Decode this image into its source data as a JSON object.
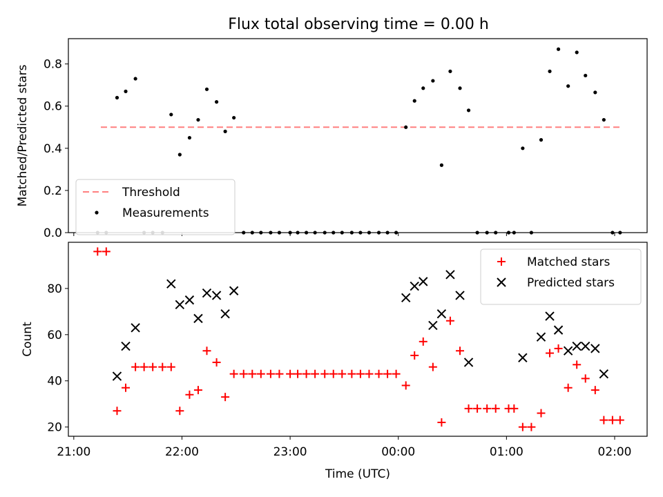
{
  "figure": {
    "title": "Flux total observing time = 0.00 h"
  },
  "chart_data": [
    {
      "type": "scatter",
      "ylabel": "Matched/Predicted stars",
      "xlabel": "",
      "x_ticks": [
        "21:00",
        "22:00",
        "23:00",
        "00:00",
        "01:00",
        "02:00"
      ],
      "x_range_hours": [
        20.95,
        26.3
      ],
      "ylim": [
        0,
        0.92
      ],
      "y_ticks": [
        "0.0",
        "0.2",
        "0.4",
        "0.6",
        "0.8"
      ],
      "legend_position": "lower-left",
      "threshold": {
        "name": "Threshold",
        "value": 0.5,
        "x_range_hours": [
          21.25,
          26.05
        ],
        "color": "#ff7f7f"
      },
      "series": [
        {
          "name": "Measurements",
          "color": "#000000",
          "points": [
            [
              21.22,
              0
            ],
            [
              21.3,
              0
            ],
            [
              21.4,
              0.64
            ],
            [
              21.48,
              0.67
            ],
            [
              21.57,
              0.73
            ],
            [
              21.65,
              0
            ],
            [
              21.73,
              0
            ],
            [
              21.82,
              0
            ],
            [
              21.9,
              0.56
            ],
            [
              21.98,
              0.37
            ],
            [
              22.07,
              0.45
            ],
            [
              22.15,
              0.535
            ],
            [
              22.23,
              0.68
            ],
            [
              22.32,
              0.62
            ],
            [
              22.4,
              0.48
            ],
            [
              22.48,
              0.545
            ],
            [
              22.57,
              0
            ],
            [
              22.65,
              0
            ],
            [
              22.73,
              0
            ],
            [
              22.82,
              0
            ],
            [
              22.9,
              0
            ],
            [
              23.0,
              0
            ],
            [
              23.07,
              0
            ],
            [
              23.15,
              0
            ],
            [
              23.23,
              0
            ],
            [
              23.32,
              0
            ],
            [
              23.4,
              0
            ],
            [
              23.48,
              0
            ],
            [
              23.57,
              0
            ],
            [
              23.65,
              0
            ],
            [
              23.73,
              0
            ],
            [
              23.82,
              0
            ],
            [
              23.9,
              0
            ],
            [
              23.98,
              0
            ],
            [
              24.07,
              0.5
            ],
            [
              24.15,
              0.625
            ],
            [
              24.23,
              0.685
            ],
            [
              24.32,
              0.72
            ],
            [
              24.4,
              0.32
            ],
            [
              24.48,
              0.765
            ],
            [
              24.57,
              0.685
            ],
            [
              24.65,
              0.58
            ],
            [
              24.73,
              0
            ],
            [
              24.82,
              0
            ],
            [
              24.9,
              0
            ],
            [
              25.02,
              0
            ],
            [
              25.07,
              0
            ],
            [
              25.15,
              0.4
            ],
            [
              25.23,
              0
            ],
            [
              25.32,
              0.44
            ],
            [
              25.4,
              0.765
            ],
            [
              25.48,
              0.87
            ],
            [
              25.57,
              0.695
            ],
            [
              25.65,
              0.855
            ],
            [
              25.73,
              0.745
            ],
            [
              25.82,
              0.665
            ],
            [
              25.9,
              0.535
            ],
            [
              25.98,
              0
            ],
            [
              26.05,
              0
            ]
          ]
        }
      ]
    },
    {
      "type": "scatter",
      "ylabel": "Count",
      "xlabel": "Time (UTC)",
      "x_ticks": [
        "21:00",
        "22:00",
        "23:00",
        "00:00",
        "01:00",
        "02:00"
      ],
      "x_range_hours": [
        20.95,
        26.3
      ],
      "ylim": [
        16,
        100
      ],
      "y_ticks": [
        "20",
        "40",
        "60",
        "80"
      ],
      "legend_position": "top-right",
      "series": [
        {
          "name": "Matched stars",
          "marker": "plus",
          "color": "#ff0000",
          "points": [
            [
              21.22,
              96
            ],
            [
              21.3,
              96
            ],
            [
              21.4,
              27
            ],
            [
              21.48,
              37
            ],
            [
              21.57,
              46
            ],
            [
              21.65,
              46
            ],
            [
              21.73,
              46
            ],
            [
              21.82,
              46
            ],
            [
              21.9,
              46
            ],
            [
              21.98,
              27
            ],
            [
              22.07,
              34
            ],
            [
              22.15,
              36
            ],
            [
              22.23,
              53
            ],
            [
              22.32,
              48
            ],
            [
              22.4,
              33
            ],
            [
              22.48,
              43
            ],
            [
              22.57,
              43
            ],
            [
              22.65,
              43
            ],
            [
              22.73,
              43
            ],
            [
              22.82,
              43
            ],
            [
              22.9,
              43
            ],
            [
              23.0,
              43
            ],
            [
              23.07,
              43
            ],
            [
              23.15,
              43
            ],
            [
              23.23,
              43
            ],
            [
              23.32,
              43
            ],
            [
              23.4,
              43
            ],
            [
              23.48,
              43
            ],
            [
              23.57,
              43
            ],
            [
              23.65,
              43
            ],
            [
              23.73,
              43
            ],
            [
              23.82,
              43
            ],
            [
              23.9,
              43
            ],
            [
              23.98,
              43
            ],
            [
              24.07,
              38
            ],
            [
              24.15,
              51
            ],
            [
              24.23,
              57
            ],
            [
              24.32,
              46
            ],
            [
              24.4,
              22
            ],
            [
              24.48,
              66
            ],
            [
              24.57,
              53
            ],
            [
              24.65,
              28
            ],
            [
              24.73,
              28
            ],
            [
              24.82,
              28
            ],
            [
              24.9,
              28
            ],
            [
              25.02,
              28
            ],
            [
              25.07,
              28
            ],
            [
              25.15,
              20
            ],
            [
              25.23,
              20
            ],
            [
              25.32,
              26
            ],
            [
              25.4,
              52
            ],
            [
              25.48,
              54
            ],
            [
              25.57,
              37
            ],
            [
              25.65,
              47
            ],
            [
              25.73,
              41
            ],
            [
              25.82,
              36
            ],
            [
              25.9,
              23
            ],
            [
              25.98,
              23
            ],
            [
              26.05,
              23
            ]
          ]
        },
        {
          "name": "Predicted stars",
          "marker": "x",
          "color": "#000000",
          "points": [
            [
              21.4,
              42
            ],
            [
              21.48,
              55
            ],
            [
              21.57,
              63
            ],
            [
              21.9,
              82
            ],
            [
              21.98,
              73
            ],
            [
              22.07,
              75
            ],
            [
              22.15,
              67
            ],
            [
              22.23,
              78
            ],
            [
              22.32,
              77
            ],
            [
              22.4,
              69
            ],
            [
              22.48,
              79
            ],
            [
              24.07,
              76
            ],
            [
              24.15,
              81
            ],
            [
              24.23,
              83
            ],
            [
              24.32,
              64
            ],
            [
              24.4,
              69
            ],
            [
              24.48,
              86
            ],
            [
              24.57,
              77
            ],
            [
              24.65,
              48
            ],
            [
              25.15,
              50
            ],
            [
              25.32,
              59
            ],
            [
              25.4,
              68
            ],
            [
              25.48,
              62
            ],
            [
              25.57,
              53
            ],
            [
              25.65,
              55
            ],
            [
              25.73,
              55
            ],
            [
              25.82,
              54
            ],
            [
              25.9,
              43
            ]
          ]
        }
      ]
    }
  ]
}
